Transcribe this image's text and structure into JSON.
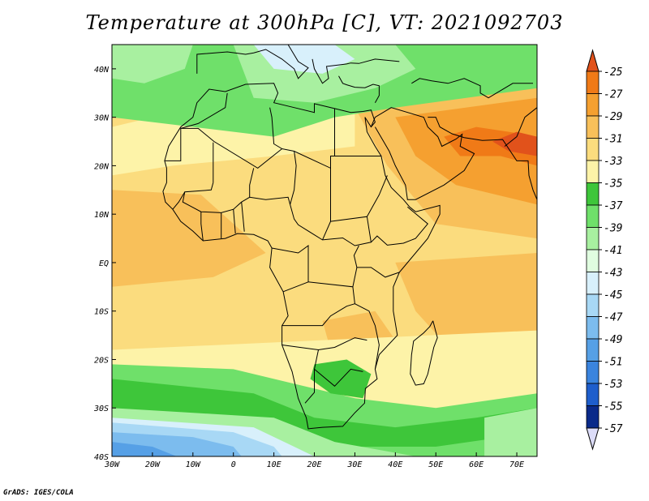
{
  "title": "Temperature at 300hPa [C], VT: 2021092703",
  "credit": "GrADS: IGES/COLA",
  "axes": {
    "lon_ticks": [
      "30W",
      "20W",
      "10W",
      "0",
      "10E",
      "20E",
      "30E",
      "40E",
      "50E",
      "60E",
      "70E"
    ],
    "lat_ticks": [
      "40N",
      "30N",
      "20N",
      "10N",
      "EQ",
      "10S",
      "20S",
      "30S",
      "40S"
    ]
  },
  "colorbar": {
    "labels": [
      "-25",
      "-27",
      "-29",
      "-31",
      "-33",
      "-35",
      "-37",
      "-39",
      "-41",
      "-43",
      "-45",
      "-47",
      "-49",
      "-51",
      "-53",
      "-55",
      "-57"
    ],
    "colors": [
      "#e1521b",
      "#f07a17",
      "#f5a030",
      "#f8c05a",
      "#fbdc7e",
      "#fdf3a8",
      "#3ec63a",
      "#6fe06a",
      "#a8f0a0",
      "#e0fde0",
      "#d8f0fb",
      "#a8d8f5",
      "#7cbcee",
      "#56a0e6",
      "#3a84de",
      "#1e5ecc",
      "#0a2a8a",
      "#061050"
    ],
    "end_colors": {
      "top": "#e1521b",
      "bottom": "#dcdcf8"
    }
  },
  "map": {
    "region": "Africa and surrounding oceans",
    "lon_range": [
      -30,
      75
    ],
    "lat_range": [
      -40,
      45
    ],
    "field_colors": {
      "deep_blue": "#56a0e6",
      "mid_blue": "#7cbcee",
      "light_blue": "#a8d8f5",
      "pale": "#d8f0fb",
      "light_green": "#a8f0a0",
      "green": "#6fe06a",
      "dark_green": "#3ec63a",
      "pale_yellow": "#fdf3a8",
      "yellow": "#fbdc7e",
      "light_orange": "#f8c05a",
      "orange": "#f5a030",
      "dark_orange": "#f07a17",
      "red_orange": "#e1521b"
    }
  }
}
